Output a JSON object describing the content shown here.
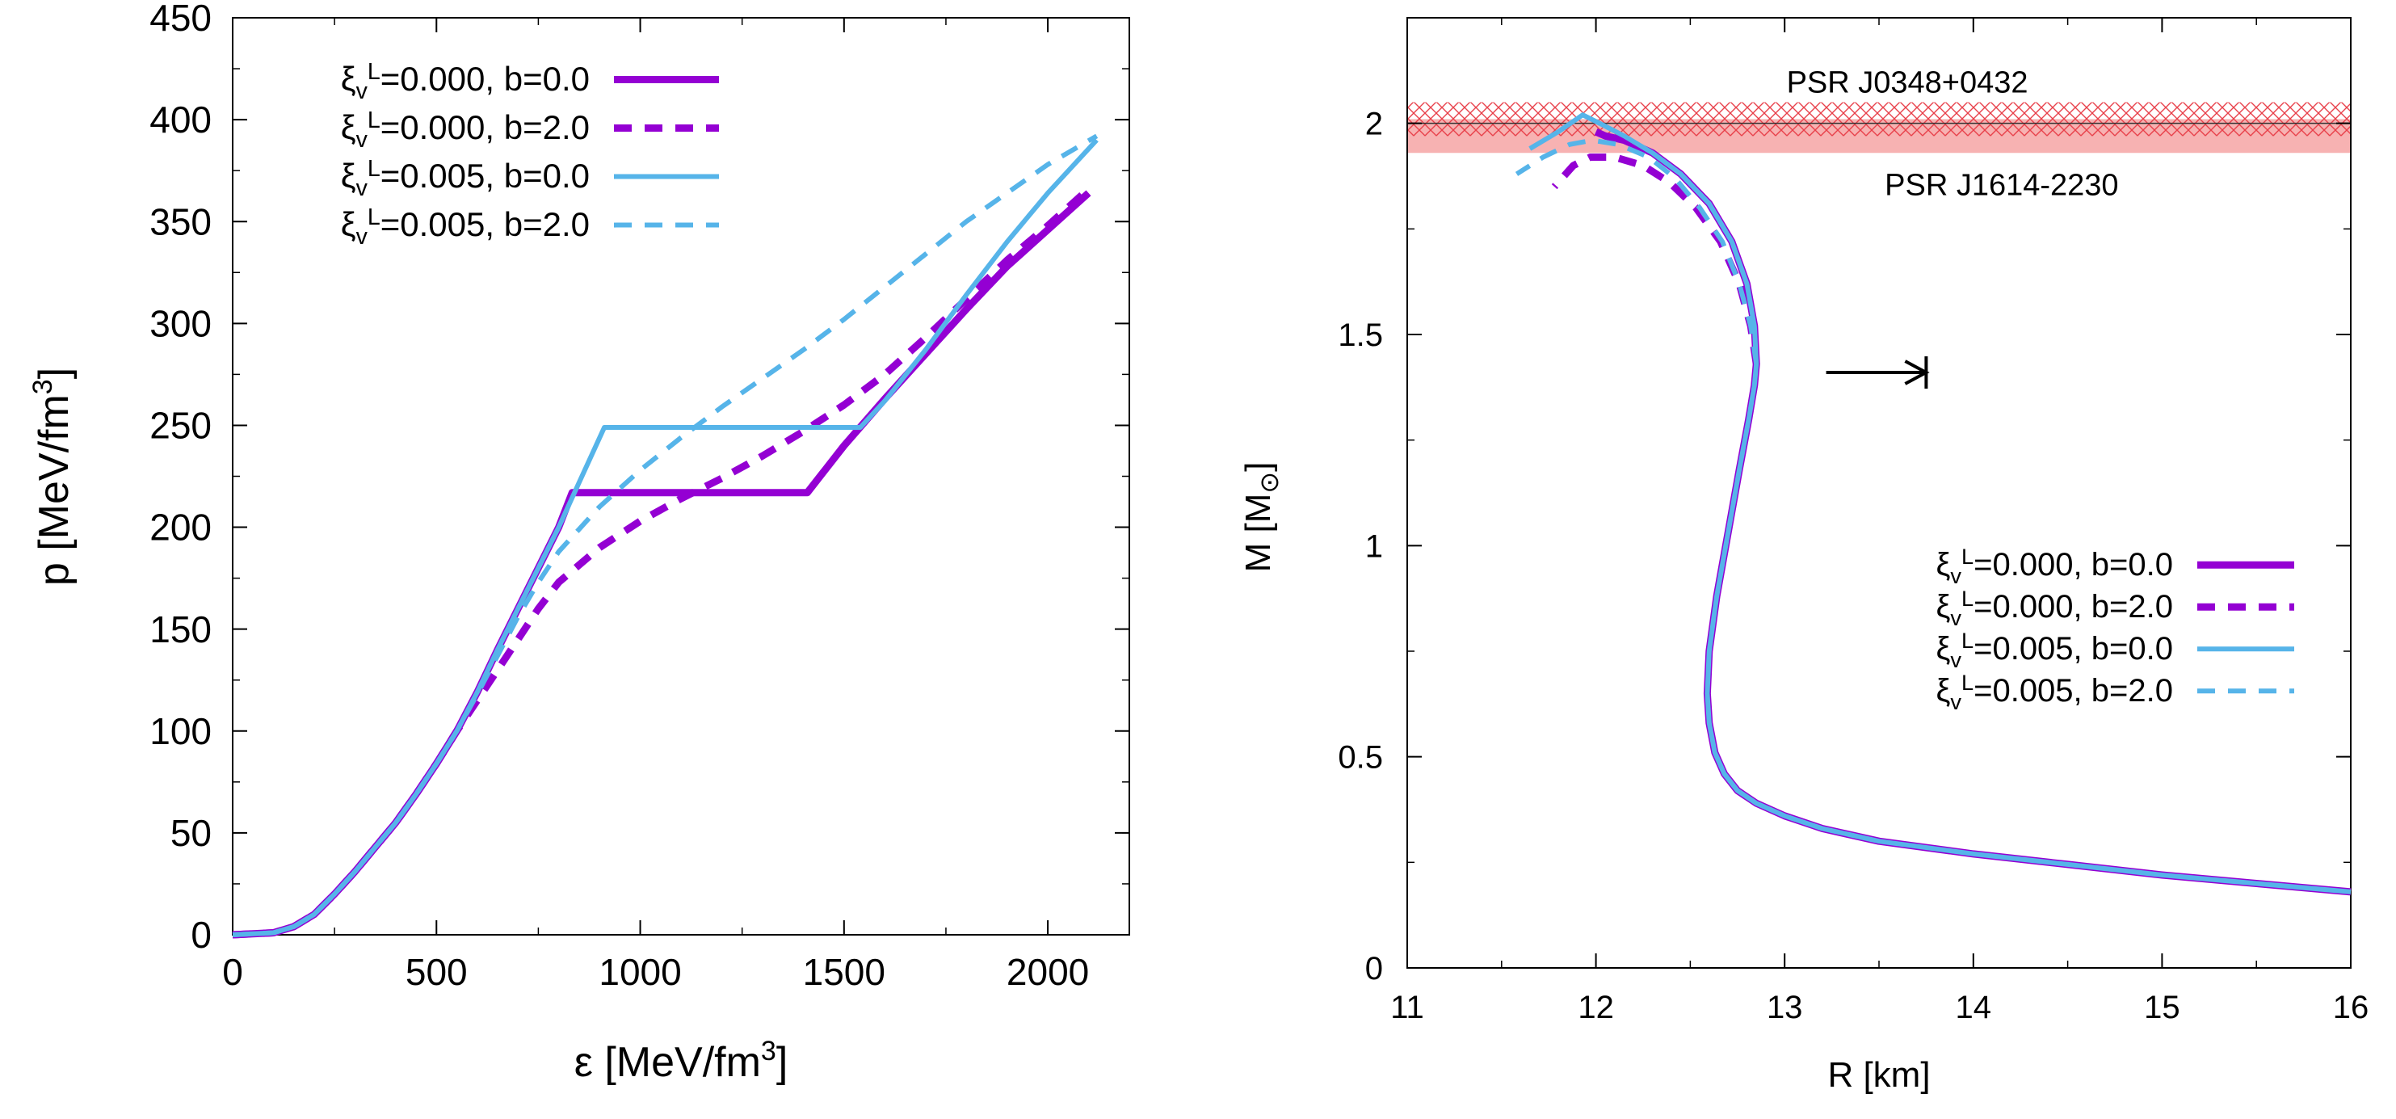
{
  "chart_data": [
    {
      "id": "eos",
      "type": "line",
      "xlabel": "ε [MeV/fm",
      "xlabel_sup": "3",
      "xlabel_end": "]",
      "ylabel": "p [MeV/fm",
      "ylabel_sup": "3",
      "ylabel_end": "]",
      "xlim": [
        0,
        2200
      ],
      "ylim": [
        0,
        450
      ],
      "xticks": [
        0,
        500,
        1000,
        1500,
        2000
      ],
      "xtick_labels": [
        "0",
        "500",
        "1000",
        "1500",
        "2000"
      ],
      "yticks": [
        0,
        50,
        100,
        150,
        200,
        250,
        300,
        350,
        400,
        450
      ],
      "ytick_labels": [
        "0",
        "50",
        "100",
        "150",
        "200",
        "250",
        "300",
        "350",
        "400",
        "450"
      ],
      "legend_position": "top-left",
      "series": [
        {
          "name": "ξv^L=0.000, b=0.0",
          "legend_parts": [
            "ξ",
            "v",
            "L",
            "=0.000, b=0.0"
          ],
          "color": "#9400d3",
          "dash": "solid",
          "width": "thick",
          "x": [
            0,
            100,
            150,
            200,
            250,
            300,
            350,
            400,
            450,
            500,
            550,
            600,
            650,
            700,
            750,
            800,
            833,
            1410,
            1500,
            1600,
            1700,
            1800,
            1900,
            2000,
            2100
          ],
          "y": [
            0,
            1,
            4,
            10,
            20,
            31,
            43,
            55,
            69,
            84,
            100,
            119,
            140,
            160,
            180,
            200,
            217,
            217,
            240,
            263,
            285,
            307,
            328,
            346,
            364
          ]
        },
        {
          "name": "ξv^L=0.000, b=2.0",
          "legend_parts": [
            "ξ",
            "v",
            "L",
            "=0.000, b=2.0"
          ],
          "color": "#9400d3",
          "dash": "dashed",
          "width": "thick",
          "x": [
            0,
            100,
            150,
            200,
            250,
            300,
            350,
            400,
            450,
            500,
            550,
            600,
            650,
            700,
            750,
            800,
            900,
            1000,
            1100,
            1200,
            1300,
            1400,
            1500,
            1600,
            1700,
            1800,
            1900,
            2000,
            2100
          ],
          "y": [
            0,
            1,
            4,
            10,
            20,
            31,
            43,
            55,
            69,
            84,
            100,
            115,
            130,
            145,
            160,
            173,
            190,
            203,
            214,
            224,
            235,
            247,
            260,
            275,
            293,
            312,
            331,
            348,
            366
          ]
        },
        {
          "name": "ξv^L=0.005, b=0.0",
          "legend_parts": [
            "ξ",
            "v",
            "L",
            "=0.005, b=0.0"
          ],
          "color": "#56b4e9",
          "dash": "solid",
          "width": "medium",
          "x": [
            0,
            100,
            150,
            200,
            250,
            300,
            350,
            400,
            450,
            500,
            550,
            600,
            650,
            700,
            750,
            800,
            850,
            912,
            1540,
            1600,
            1700,
            1800,
            1900,
            2000,
            2120
          ],
          "y": [
            0,
            1,
            4,
            10,
            20,
            31,
            43,
            55,
            69,
            84,
            100,
            119,
            140,
            160,
            180,
            200,
            222,
            249,
            249,
            262,
            287,
            314,
            340,
            364,
            390
          ]
        },
        {
          "name": "ξv^L=0.005, b=2.0",
          "legend_parts": [
            "ξ",
            "v",
            "L",
            "=0.005, b=2.0"
          ],
          "color": "#56b4e9",
          "dash": "dashed",
          "width": "medium",
          "x": [
            0,
            100,
            150,
            200,
            250,
            300,
            350,
            400,
            450,
            500,
            550,
            600,
            650,
            700,
            750,
            800,
            900,
            1000,
            1100,
            1200,
            1300,
            1400,
            1500,
            1600,
            1700,
            1800,
            1900,
            2000,
            2120
          ],
          "y": [
            0,
            1,
            4,
            10,
            20,
            31,
            43,
            55,
            69,
            84,
            100,
            118,
            137,
            156,
            173,
            188,
            210,
            228,
            244,
            259,
            273,
            287,
            302,
            318,
            334,
            350,
            364,
            378,
            392
          ]
        }
      ]
    },
    {
      "id": "mr",
      "type": "line",
      "xlabel": "R [km]",
      "ylabel": "M [M",
      "ylabel_sub": "⊙",
      "ylabel_end": "]",
      "xlim": [
        11,
        16
      ],
      "ylim": [
        0,
        2.25
      ],
      "xticks": [
        11,
        12,
        13,
        14,
        15,
        16
      ],
      "xtick_labels": [
        "11",
        "12",
        "13",
        "14",
        "15",
        "16"
      ],
      "yticks": [
        0,
        0.5,
        1,
        1.5,
        2
      ],
      "ytick_labels": [
        "0",
        "0.5",
        "1",
        "1.5",
        "2"
      ],
      "legend_position": "lower-right",
      "bands": [
        {
          "label": "PSR J0348+0432",
          "ymin": 1.97,
          "ymax": 2.05,
          "pattern": "crosshatch",
          "color": "#e8404a",
          "label_side": "above"
        },
        {
          "label": "PSR J1614-2230",
          "ymin": 1.93,
          "ymax": 2.01,
          "pattern": "solid",
          "color": "#f6a5a5",
          "label_side": "below"
        }
      ],
      "arrow": {
        "x_start": 13.22,
        "x_end": 13.75,
        "y": 1.41,
        "color": "#000000"
      },
      "series": [
        {
          "name": "ξv^L=0.000, b=0.0",
          "legend_parts": [
            "ξ",
            "v",
            "L",
            "=0.000, b=0.0"
          ],
          "color": "#9400d3",
          "dash": "solid",
          "width": "thick",
          "R": [
            16.0,
            15.5,
            15.0,
            14.5,
            14.0,
            13.5,
            13.2,
            13.0,
            12.85,
            12.75,
            12.68,
            12.63,
            12.6,
            12.59,
            12.6,
            12.64,
            12.7,
            12.76,
            12.81,
            12.84,
            12.85,
            12.84,
            12.8,
            12.72,
            12.6,
            12.45,
            12.3,
            12.15,
            12.05,
            12.0
          ],
          "M": [
            0.18,
            0.2,
            0.22,
            0.245,
            0.27,
            0.3,
            0.33,
            0.36,
            0.39,
            0.42,
            0.46,
            0.51,
            0.58,
            0.65,
            0.75,
            0.88,
            1.03,
            1.18,
            1.3,
            1.38,
            1.43,
            1.52,
            1.62,
            1.72,
            1.81,
            1.88,
            1.93,
            1.96,
            1.97,
            1.98
          ]
        },
        {
          "name": "ξv^L=0.000, b=2.0",
          "legend_parts": [
            "ξ",
            "v",
            "L",
            "=0.000, b=2.0"
          ],
          "color": "#9400d3",
          "dash": "dashed",
          "width": "thick",
          "R": [
            12.85,
            12.82,
            12.76,
            12.66,
            12.53,
            12.39,
            12.25,
            12.1,
            11.97,
            11.88,
            11.78
          ],
          "M": [
            1.43,
            1.52,
            1.62,
            1.72,
            1.8,
            1.86,
            1.9,
            1.92,
            1.92,
            1.9,
            1.85
          ]
        },
        {
          "name": "ξv^L=0.005, b=0.0",
          "legend_parts": [
            "ξ",
            "v",
            "L",
            "=0.005, b=0.0"
          ],
          "color": "#56b4e9",
          "dash": "solid",
          "width": "medium",
          "R": [
            16.0,
            15.5,
            15.0,
            14.5,
            14.0,
            13.5,
            13.2,
            13.0,
            12.85,
            12.75,
            12.68,
            12.63,
            12.6,
            12.59,
            12.6,
            12.64,
            12.7,
            12.76,
            12.81,
            12.84,
            12.85,
            12.84,
            12.8,
            12.72,
            12.6,
            12.45,
            12.3,
            12.15,
            12.02,
            11.93,
            11.8,
            11.65
          ],
          "M": [
            0.18,
            0.2,
            0.22,
            0.245,
            0.27,
            0.3,
            0.33,
            0.36,
            0.39,
            0.42,
            0.46,
            0.51,
            0.58,
            0.65,
            0.75,
            0.88,
            1.03,
            1.18,
            1.3,
            1.38,
            1.43,
            1.52,
            1.62,
            1.72,
            1.81,
            1.88,
            1.93,
            1.97,
            2.0,
            2.02,
            1.98,
            1.94
          ]
        },
        {
          "name": "ξv^L=0.005, b=2.0",
          "legend_parts": [
            "ξ",
            "v",
            "L",
            "=0.005, b=2.0"
          ],
          "color": "#56b4e9",
          "dash": "dashed",
          "width": "medium",
          "R": [
            12.85,
            12.82,
            12.76,
            12.67,
            12.55,
            12.42,
            12.28,
            12.12,
            11.98,
            11.86,
            11.72,
            11.58
          ],
          "M": [
            1.43,
            1.52,
            1.62,
            1.72,
            1.8,
            1.87,
            1.92,
            1.95,
            1.96,
            1.95,
            1.92,
            1.88
          ]
        }
      ]
    }
  ]
}
